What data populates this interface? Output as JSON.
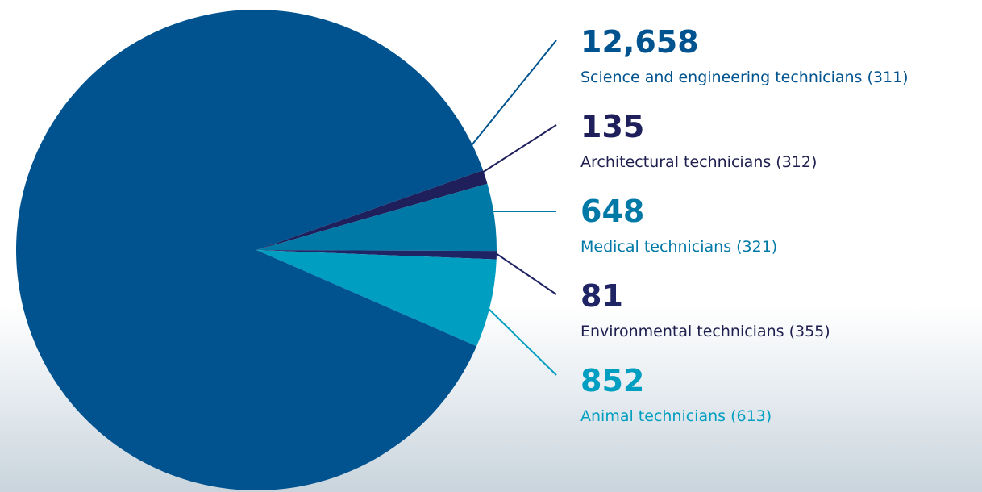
{
  "chart_data": {
    "type": "pie",
    "categories": [
      "Science and engineering technicians (311)",
      "Architectural technicians (312)",
      "Medical technicians (321)",
      "Environmental technicians (355)",
      "Animal technicians (613)"
    ],
    "values": [
      12658,
      135,
      648,
      81,
      852
    ],
    "value_labels": [
      "12,658",
      "135",
      "648",
      "81",
      "852"
    ],
    "colors": [
      "#00538f",
      "#1f1f5c",
      "#0079a6",
      "#1f2464",
      "#009ec0"
    ]
  }
}
